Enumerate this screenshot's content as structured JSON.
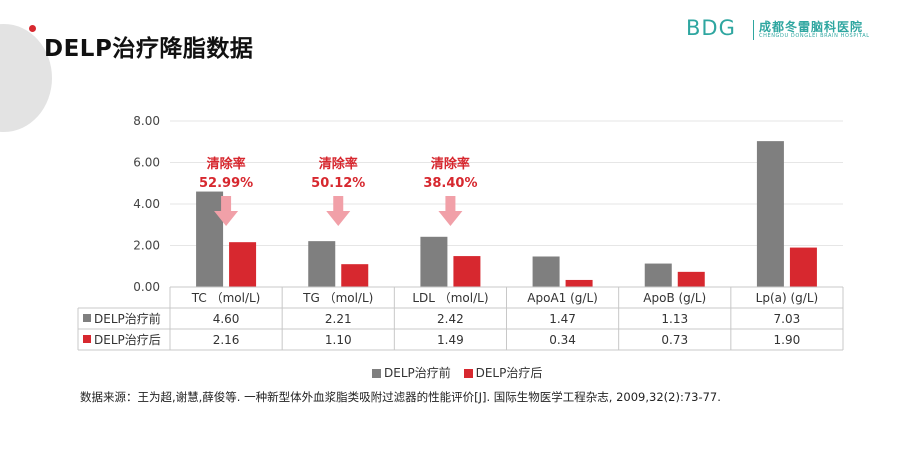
{
  "page": {
    "title": "DELP治疗降脂数据",
    "source": "数据来源：王为超,谢慧,薛俊等. 一种新型体外血浆脂类吸附过滤器的性能评价[J]. 国际生物医学工程杂志, 2009,32(2):73-77."
  },
  "logo": {
    "mark": "BDG",
    "name_cn": "成都冬雷脑科医院",
    "name_en": "CHENGDU DONGLEI BRAIN HOSPITAL"
  },
  "colors": {
    "before": "#7f7f7f",
    "after": "#d7282f",
    "arrow": "#f1a0a8",
    "annotation": "#d7282f",
    "logo": "#2ea6a0"
  },
  "chart_data": {
    "type": "bar",
    "categories": [
      "TC （mol/L)",
      "TG （mol/L)",
      "LDL （mol/L)",
      "ApoA1 (g/L)",
      "ApoB (g/L)",
      "Lp(a) (g/L)"
    ],
    "series": [
      {
        "name": "DELP治疗前",
        "values": [
          4.6,
          2.21,
          2.42,
          1.47,
          1.13,
          7.03
        ],
        "labels": [
          "4.60",
          "2.21",
          "2.42",
          "1.47",
          "1.13",
          "7.03"
        ]
      },
      {
        "name": "DELP治疗后",
        "values": [
          2.16,
          1.1,
          1.49,
          0.34,
          0.73,
          1.9
        ],
        "labels": [
          "2.16",
          "1.10",
          "1.49",
          "0.34",
          "0.73",
          "1.90"
        ]
      }
    ],
    "ylim": [
      0,
      8
    ],
    "yticks": [
      "0.00",
      "2.00",
      "4.00",
      "6.00",
      "8.00"
    ],
    "ytick_values": [
      0,
      2,
      4,
      6,
      8
    ],
    "grid": true,
    "legend": "bottom",
    "data_table": true,
    "annotations": [
      {
        "category_index": 0,
        "label": "清除率",
        "value": "52.99%"
      },
      {
        "category_index": 1,
        "label": "清除率",
        "value": "50.12%"
      },
      {
        "category_index": 2,
        "label": "清除率",
        "value": "38.40%"
      }
    ]
  }
}
